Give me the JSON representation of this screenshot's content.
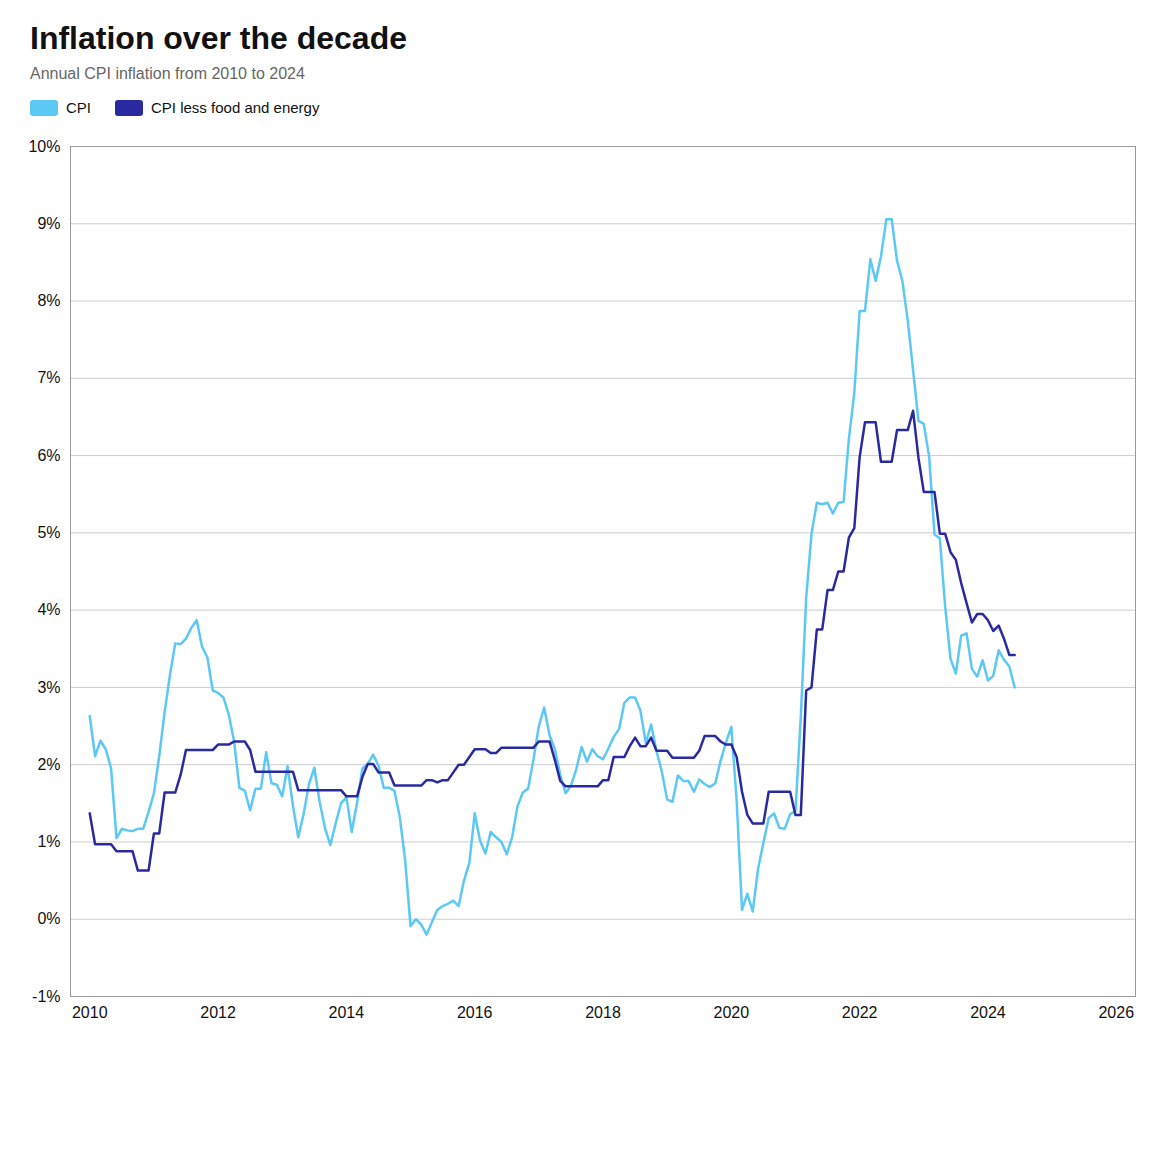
{
  "chart_data": {
    "type": "line",
    "title": "Inflation over the decade",
    "subtitle": "Annual CPI inflation from 2010 to 2024",
    "x": [
      2010.0,
      2010.083,
      2010.167,
      2010.25,
      2010.333,
      2010.417,
      2010.5,
      2010.583,
      2010.667,
      2010.75,
      2010.833,
      2010.917,
      2011.0,
      2011.083,
      2011.167,
      2011.25,
      2011.333,
      2011.417,
      2011.5,
      2011.583,
      2011.667,
      2011.75,
      2011.833,
      2011.917,
      2012.0,
      2012.083,
      2012.167,
      2012.25,
      2012.333,
      2012.417,
      2012.5,
      2012.583,
      2012.667,
      2012.75,
      2012.833,
      2012.917,
      2013.0,
      2013.083,
      2013.167,
      2013.25,
      2013.333,
      2013.417,
      2013.5,
      2013.583,
      2013.667,
      2013.75,
      2013.833,
      2013.917,
      2014.0,
      2014.083,
      2014.167,
      2014.25,
      2014.333,
      2014.417,
      2014.5,
      2014.583,
      2014.667,
      2014.75,
      2014.833,
      2014.917,
      2015.0,
      2015.083,
      2015.167,
      2015.25,
      2015.333,
      2015.417,
      2015.5,
      2015.583,
      2015.667,
      2015.75,
      2015.833,
      2015.917,
      2016.0,
      2016.083,
      2016.167,
      2016.25,
      2016.333,
      2016.417,
      2016.5,
      2016.583,
      2016.667,
      2016.75,
      2016.833,
      2016.917,
      2017.0,
      2017.083,
      2017.167,
      2017.25,
      2017.333,
      2017.417,
      2017.5,
      2017.583,
      2017.667,
      2017.75,
      2017.833,
      2017.917,
      2018.0,
      2018.083,
      2018.167,
      2018.25,
      2018.333,
      2018.417,
      2018.5,
      2018.583,
      2018.667,
      2018.75,
      2018.833,
      2018.917,
      2019.0,
      2019.083,
      2019.167,
      2019.25,
      2019.333,
      2019.417,
      2019.5,
      2019.583,
      2019.667,
      2019.75,
      2019.833,
      2019.917,
      2020.0,
      2020.083,
      2020.167,
      2020.25,
      2020.333,
      2020.417,
      2020.5,
      2020.583,
      2020.667,
      2020.75,
      2020.833,
      2020.917,
      2021.0,
      2021.083,
      2021.167,
      2021.25,
      2021.333,
      2021.417,
      2021.5,
      2021.583,
      2021.667,
      2021.75,
      2021.833,
      2021.917,
      2022.0,
      2022.083,
      2022.167,
      2022.25,
      2022.333,
      2022.417,
      2022.5,
      2022.583,
      2022.667,
      2022.75,
      2022.833,
      2022.917,
      2023.0,
      2023.083,
      2023.167,
      2023.25,
      2023.333,
      2023.417,
      2023.5,
      2023.583,
      2023.667,
      2023.75,
      2023.833,
      2023.917,
      2024.0,
      2024.083,
      2024.167,
      2024.25,
      2024.333,
      2024.417
    ],
    "series": [
      {
        "name": "CPI",
        "color": "#5BC8F5",
        "values": [
          2.63,
          2.11,
          2.31,
          2.2,
          1.95,
          1.05,
          1.17,
          1.15,
          1.14,
          1.17,
          1.17,
          1.39,
          1.63,
          2.11,
          2.68,
          3.16,
          3.57,
          3.56,
          3.63,
          3.77,
          3.87,
          3.53,
          3.39,
          2.96,
          2.93,
          2.87,
          2.65,
          2.3,
          1.7,
          1.66,
          1.41,
          1.69,
          1.69,
          2.16,
          1.76,
          1.74,
          1.59,
          1.98,
          1.47,
          1.06,
          1.36,
          1.75,
          1.96,
          1.52,
          1.18,
          0.96,
          1.24,
          1.5,
          1.58,
          1.13,
          1.51,
          1.95,
          2.01,
          2.13,
          1.99,
          1.7,
          1.7,
          1.66,
          1.32,
          0.76,
          -0.09,
          0.0,
          -0.07,
          -0.2,
          -0.04,
          0.12,
          0.17,
          0.2,
          0.24,
          0.17,
          0.5,
          0.73,
          1.37,
          1.02,
          0.85,
          1.13,
          1.06,
          1.0,
          0.84,
          1.06,
          1.46,
          1.64,
          1.69,
          2.07,
          2.5,
          2.74,
          2.38,
          2.2,
          1.87,
          1.63,
          1.73,
          1.94,
          2.23,
          2.04,
          2.2,
          2.11,
          2.07,
          2.21,
          2.36,
          2.46,
          2.8,
          2.87,
          2.87,
          2.7,
          2.28,
          2.52,
          2.18,
          1.91,
          1.55,
          1.52,
          1.86,
          1.79,
          1.79,
          1.65,
          1.81,
          1.75,
          1.71,
          1.76,
          2.05,
          2.29,
          2.49,
          1.54,
          0.12,
          0.33,
          0.1,
          0.65,
          0.99,
          1.31,
          1.37,
          1.18,
          1.17,
          1.36,
          1.4,
          2.62,
          4.16,
          4.99,
          5.39,
          5.37,
          5.39,
          5.25,
          5.39,
          5.4,
          6.22,
          6.81,
          7.87,
          7.87,
          8.54,
          8.26,
          8.58,
          9.06,
          9.06,
          8.52,
          8.26,
          7.75,
          7.11,
          6.45,
          6.41,
          5.99,
          4.98,
          4.93,
          4.05,
          3.37,
          3.18,
          3.67,
          3.7,
          3.24,
          3.14,
          3.35,
          3.09,
          3.15,
          3.48,
          3.36,
          3.27,
          3.0
        ]
      },
      {
        "name": "CPI less food and energy",
        "color": "#2A2AA0",
        "values": [
          1.37,
          0.97,
          0.97,
          0.97,
          0.97,
          0.88,
          0.88,
          0.88,
          0.88,
          0.63,
          0.63,
          0.63,
          1.11,
          1.11,
          1.64,
          1.64,
          1.64,
          1.87,
          2.19,
          2.19,
          2.19,
          2.19,
          2.19,
          2.19,
          2.26,
          2.26,
          2.26,
          2.3,
          2.3,
          2.3,
          2.19,
          1.91,
          1.91,
          1.91,
          1.91,
          1.91,
          1.91,
          1.91,
          1.91,
          1.67,
          1.67,
          1.67,
          1.67,
          1.67,
          1.67,
          1.67,
          1.67,
          1.67,
          1.59,
          1.59,
          1.59,
          1.84,
          2.01,
          2.01,
          1.9,
          1.9,
          1.9,
          1.73,
          1.73,
          1.73,
          1.73,
          1.73,
          1.73,
          1.8,
          1.8,
          1.77,
          1.8,
          1.8,
          1.9,
          2.0,
          2.0,
          2.1,
          2.2,
          2.2,
          2.2,
          2.15,
          2.15,
          2.22,
          2.22,
          2.22,
          2.22,
          2.22,
          2.22,
          2.22,
          2.3,
          2.3,
          2.3,
          2.06,
          1.79,
          1.72,
          1.72,
          1.72,
          1.72,
          1.72,
          1.72,
          1.72,
          1.8,
          1.8,
          2.1,
          2.1,
          2.1,
          2.24,
          2.35,
          2.24,
          2.24,
          2.35,
          2.18,
          2.18,
          2.18,
          2.09,
          2.09,
          2.09,
          2.09,
          2.09,
          2.18,
          2.37,
          2.37,
          2.37,
          2.3,
          2.26,
          2.26,
          2.1,
          1.65,
          1.35,
          1.24,
          1.24,
          1.24,
          1.65,
          1.65,
          1.65,
          1.65,
          1.65,
          1.35,
          1.35,
          2.96,
          3.0,
          3.75,
          3.75,
          4.26,
          4.26,
          4.5,
          4.5,
          4.94,
          5.06,
          5.98,
          6.43,
          6.43,
          6.43,
          5.92,
          5.92,
          5.92,
          6.33,
          6.33,
          6.33,
          6.58,
          5.97,
          5.53,
          5.53,
          5.53,
          4.99,
          4.99,
          4.75,
          4.65,
          4.35,
          4.09,
          3.84,
          3.95,
          3.95,
          3.87,
          3.73,
          3.8,
          3.63,
          3.42,
          3.42
        ]
      }
    ],
    "xlim": [
      2009.7,
      2026.3
    ],
    "xticks": [
      2010,
      2012,
      2014,
      2016,
      2018,
      2020,
      2022,
      2024,
      2026
    ],
    "ylim": [
      -1,
      10
    ],
    "yticks": [
      {
        "value": -1,
        "label": "-1%"
      },
      {
        "value": 0,
        "label": "0%"
      },
      {
        "value": 1,
        "label": "1%"
      },
      {
        "value": 2,
        "label": "2%"
      },
      {
        "value": 3,
        "label": "3%"
      },
      {
        "value": 4,
        "label": "4%"
      },
      {
        "value": 5,
        "label": "5%"
      },
      {
        "value": 6,
        "label": "6%"
      },
      {
        "value": 7,
        "label": "7%"
      },
      {
        "value": 8,
        "label": "8%"
      },
      {
        "value": 9,
        "label": "9%"
      },
      {
        "value": 10,
        "label": "10%"
      }
    ],
    "grid": "y",
    "legend": "top"
  }
}
